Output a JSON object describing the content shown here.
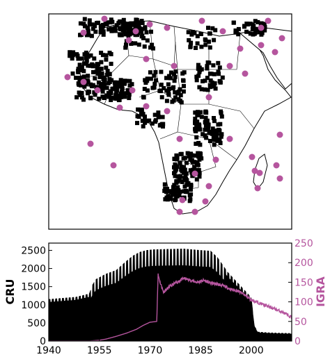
{
  "colors": {
    "cru": "#000000",
    "igra": "#b5559e",
    "land": "#ffffff",
    "border": "#000000"
  },
  "map": {
    "description_icon": "africa-station-map",
    "cru_marker": "square",
    "igra_marker": "circle"
  },
  "chart_data": [
    {
      "type": "area",
      "series": [
        {
          "name": "CRU",
          "axis": "left",
          "x": [
            1940,
            1944,
            1948,
            1952,
            1953,
            1954,
            1957,
            1960,
            1963,
            1965,
            1967,
            1969,
            1971,
            1975,
            1980,
            1985,
            1988,
            1990,
            1993,
            1996,
            1998,
            2000,
            2001,
            2002,
            2005,
            2008,
            2012
          ],
          "values": [
            1150,
            1180,
            1210,
            1300,
            1550,
            1700,
            1850,
            1950,
            2200,
            2350,
            2450,
            2500,
            2520,
            2530,
            2540,
            2500,
            2480,
            2300,
            1900,
            1600,
            1400,
            1200,
            400,
            250,
            230,
            220,
            210
          ]
        },
        {
          "name": "IGRA",
          "axis": "right",
          "type": "line",
          "x": [
            1940,
            1952,
            1955,
            1957,
            1960,
            1963,
            1966,
            1968,
            1970,
            1972,
            1972.4,
            1973,
            1974,
            1976,
            1978,
            1980,
            1982,
            1984,
            1986,
            1988,
            1990,
            1992,
            1994,
            1996,
            1998,
            2000,
            2003,
            2006,
            2009,
            2012
          ],
          "values": [
            0,
            0,
            2,
            5,
            12,
            20,
            30,
            40,
            48,
            50,
            170,
            150,
            125,
            140,
            150,
            160,
            155,
            150,
            155,
            148,
            145,
            140,
            132,
            128,
            118,
            105,
            95,
            85,
            75,
            60
          ]
        }
      ],
      "xlim": [
        1940,
        2012
      ],
      "xticks": [
        "1940",
        "1955",
        "1970",
        "1985",
        "2000"
      ],
      "ylim_left": [
        0,
        2700
      ],
      "yticks_left": [
        "0",
        "500",
        "1000",
        "1500",
        "2000",
        "2500"
      ],
      "ylim_right": [
        0,
        250
      ],
      "yticks_right": [
        "0",
        "50",
        "100",
        "150",
        "200",
        "250"
      ],
      "ylabel_left": "CRU",
      "ylabel_right": "IGRA",
      "title": "",
      "xlabel": ""
    }
  ]
}
